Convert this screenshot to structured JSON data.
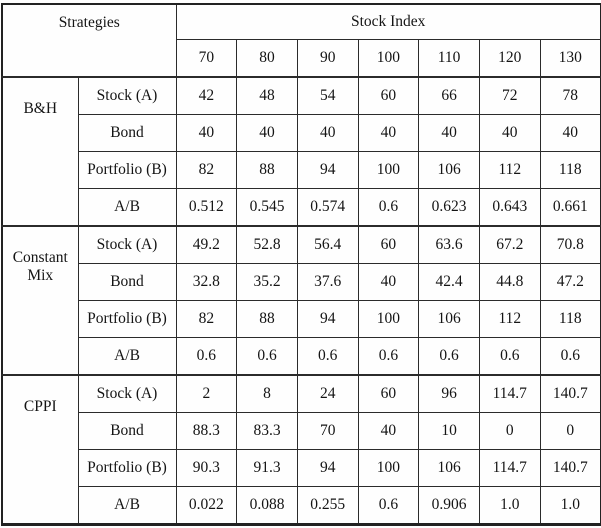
{
  "colors": {
    "table_border": "#222222",
    "grid_line": "#2b2b2b",
    "text": "#141414",
    "background": "#ffffff"
  },
  "chart_data": {
    "type": "table",
    "corner_header": "Strategies",
    "group_header": "Stock Index",
    "levels": [
      "70",
      "80",
      "90",
      "100",
      "110",
      "120",
      "130"
    ],
    "row_labels": [
      "Stock (A)",
      "Bond",
      "Portfolio (B)",
      "A/B"
    ],
    "groups": [
      {
        "name": "B&H",
        "rows": [
          {
            "label": "Stock (A)",
            "values": [
              "42",
              "48",
              "54",
              "60",
              "66",
              "72",
              "78"
            ]
          },
          {
            "label": "Bond",
            "values": [
              "40",
              "40",
              "40",
              "40",
              "40",
              "40",
              "40"
            ]
          },
          {
            "label": "Portfolio (B)",
            "values": [
              "82",
              "88",
              "94",
              "100",
              "106",
              "112",
              "118"
            ]
          },
          {
            "label": "A/B",
            "values": [
              "0.512",
              "0.545",
              "0.574",
              "0.6",
              "0.623",
              "0.643",
              "0.661"
            ]
          }
        ]
      },
      {
        "name": "Constant Mix",
        "rows": [
          {
            "label": "Stock (A)",
            "values": [
              "49.2",
              "52.8",
              "56.4",
              "60",
              "63.6",
              "67.2",
              "70.8"
            ]
          },
          {
            "label": "Bond",
            "values": [
              "32.8",
              "35.2",
              "37.6",
              "40",
              "42.4",
              "44.8",
              "47.2"
            ]
          },
          {
            "label": "Portfolio (B)",
            "values": [
              "82",
              "88",
              "94",
              "100",
              "106",
              "112",
              "118"
            ]
          },
          {
            "label": "A/B",
            "values": [
              "0.6",
              "0.6",
              "0.6",
              "0.6",
              "0.6",
              "0.6",
              "0.6"
            ]
          }
        ]
      },
      {
        "name": "CPPI",
        "rows": [
          {
            "label": "Stock (A)",
            "values": [
              "2",
              "8",
              "24",
              "60",
              "96",
              "114.7",
              "140.7"
            ]
          },
          {
            "label": "Bond",
            "values": [
              "88.3",
              "83.3",
              "70",
              "40",
              "10",
              "0",
              "0"
            ]
          },
          {
            "label": "Portfolio (B)",
            "values": [
              "90.3",
              "91.3",
              "94",
              "100",
              "106",
              "114.7",
              "140.7"
            ]
          },
          {
            "label": "A/B",
            "values": [
              "0.022",
              "0.088",
              "0.255",
              "0.6",
              "0.906",
              "1.0",
              "1.0"
            ]
          }
        ]
      }
    ]
  }
}
